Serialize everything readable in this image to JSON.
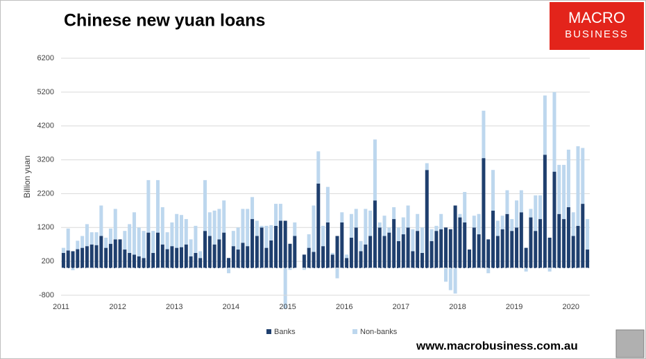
{
  "chart_data": {
    "type": "stacked-bar",
    "title": "Chinese new yuan loans",
    "y_label": "Billion yuan",
    "logo": [
      "MACRO",
      "BUSINESS"
    ],
    "footer": "www.macrobusiness.com.au",
    "ylim": [
      -800,
      6200
    ],
    "yticks": [
      -800,
      200,
      1200,
      2200,
      3200,
      4200,
      5200,
      6200
    ],
    "grid": true,
    "legend": "bottom",
    "categories": [
      "2011",
      null,
      null,
      null,
      null,
      null,
      null,
      null,
      null,
      null,
      null,
      null,
      "2012",
      null,
      null,
      null,
      null,
      null,
      null,
      null,
      null,
      null,
      null,
      null,
      "2013",
      null,
      null,
      null,
      null,
      null,
      null,
      null,
      null,
      null,
      null,
      null,
      "2014",
      null,
      null,
      null,
      null,
      null,
      null,
      null,
      null,
      null,
      null,
      null,
      "2015",
      null,
      null,
      null,
      null,
      null,
      null,
      null,
      null,
      null,
      null,
      null,
      "2016",
      null,
      null,
      null,
      null,
      null,
      null,
      null,
      null,
      null,
      null,
      null,
      "2017",
      null,
      null,
      null,
      null,
      null,
      null,
      null,
      null,
      null,
      null,
      null,
      "2018",
      null,
      null,
      null,
      null,
      null,
      null,
      null,
      null,
      null,
      null,
      null,
      "2019",
      null,
      null,
      null,
      null,
      null,
      null,
      null,
      null,
      null,
      null,
      null,
      "2020",
      null,
      null,
      null
    ],
    "series": [
      {
        "name": "Banks",
        "color": "#1f3f6e",
        "values": [
          450,
          520,
          500,
          560,
          600,
          650,
          700,
          680,
          950,
          600,
          720,
          850,
          850,
          550,
          450,
          400,
          350,
          300,
          1050,
          450,
          1050,
          700,
          560,
          650,
          600,
          620,
          700,
          350,
          450,
          300,
          1100,
          950,
          700,
          850,
          1050,
          300,
          650,
          550,
          750,
          650,
          1450,
          950,
          1200,
          600,
          820,
          1250,
          1400,
          1400,
          720,
          950,
          0,
          400,
          600,
          480,
          2500,
          650,
          1350,
          400,
          950,
          1350,
          300,
          900,
          1200,
          500,
          700,
          950,
          2000,
          1200,
          950,
          1050,
          1450,
          800,
          1000,
          1200,
          500,
          1100,
          450,
          2900,
          800,
          1100,
          1150,
          1200,
          1150,
          1850,
          1500,
          1350,
          550,
          1200,
          1000,
          3250,
          850,
          1700,
          950,
          1150,
          1600,
          1100,
          1200,
          1650,
          600,
          1500,
          1100,
          1450,
          3350,
          900,
          2850,
          1600,
          1450,
          1800,
          950,
          1250,
          1900,
          550
        ]
      },
      {
        "name": "Non-banks",
        "color": "#bdd7ee",
        "values": [
          150,
          650,
          -60,
          250,
          350,
          650,
          360,
          380,
          900,
          300,
          450,
          900,
          0,
          550,
          850,
          1250,
          850,
          800,
          1550,
          650,
          1550,
          1100,
          500,
          700,
          1000,
          950,
          750,
          500,
          800,
          200,
          1500,
          700,
          1000,
          900,
          950,
          -150,
          450,
          650,
          1000,
          1100,
          650,
          450,
          50,
          650,
          450,
          650,
          500,
          -1200,
          -50,
          400,
          0,
          -50,
          400,
          1370,
          950,
          600,
          1050,
          50,
          -300,
          300,
          100,
          700,
          550,
          300,
          1050,
          750,
          1800,
          150,
          600,
          150,
          350,
          400,
          500,
          650,
          650,
          500,
          750,
          200,
          350,
          150,
          450,
          -400,
          -650,
          -750,
          100,
          900,
          0,
          350,
          600,
          1400,
          -150,
          1200,
          450,
          400,
          700,
          350,
          800,
          650,
          -100,
          250,
          1050,
          700,
          1750,
          -100,
          2350,
          1450,
          1600,
          1700,
          700,
          2350,
          1650,
          900
        ]
      }
    ]
  }
}
